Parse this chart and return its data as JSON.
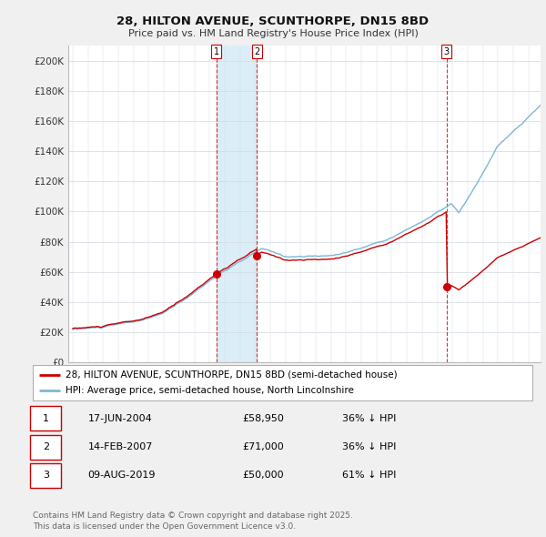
{
  "title_line1": "28, HILTON AVENUE, SCUNTHORPE, DN15 8BD",
  "title_line2": "Price paid vs. HM Land Registry's House Price Index (HPI)",
  "ylim": [
    0,
    210000
  ],
  "yticks": [
    0,
    20000,
    40000,
    60000,
    80000,
    100000,
    120000,
    140000,
    160000,
    180000,
    200000
  ],
  "ytick_labels": [
    "£0",
    "£20K",
    "£40K",
    "£60K",
    "£80K",
    "£100K",
    "£120K",
    "£140K",
    "£160K",
    "£180K",
    "£200K"
  ],
  "hpi_color": "#7bb8d4",
  "price_color": "#cc0000",
  "shade_color": "#dbeef7",
  "sale1_date": 2004.46,
  "sale1_price": 58950,
  "sale2_date": 2007.12,
  "sale2_price": 71000,
  "sale3_date": 2019.61,
  "sale3_price": 50000,
  "legend_line1": "28, HILTON AVENUE, SCUNTHORPE, DN15 8BD (semi-detached house)",
  "legend_line2": "HPI: Average price, semi-detached house, North Lincolnshire",
  "table_data": [
    [
      "1",
      "17-JUN-2004",
      "£58,950",
      "36% ↓ HPI"
    ],
    [
      "2",
      "14-FEB-2007",
      "£71,000",
      "36% ↓ HPI"
    ],
    [
      "3",
      "09-AUG-2019",
      "£50,000",
      "61% ↓ HPI"
    ]
  ],
  "footnote": "Contains HM Land Registry data © Crown copyright and database right 2025.\nThis data is licensed under the Open Government Licence v3.0.",
  "background_color": "#f0f0f0",
  "plot_bg_color": "#ffffff",
  "grid_color": "#d0d8e0"
}
